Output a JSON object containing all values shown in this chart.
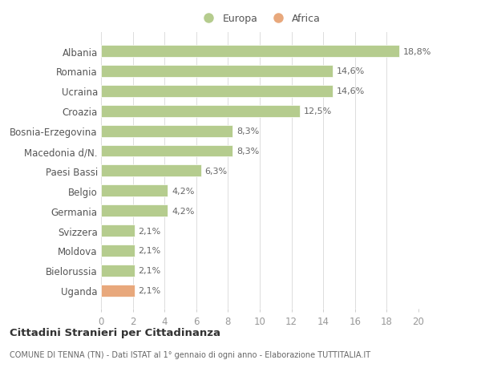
{
  "categories": [
    "Albania",
    "Romania",
    "Ucraina",
    "Croazia",
    "Bosnia-Erzegovina",
    "Macedonia d/N.",
    "Paesi Bassi",
    "Belgio",
    "Germania",
    "Svizzera",
    "Moldova",
    "Bielorussia",
    "Uganda"
  ],
  "values": [
    18.8,
    14.6,
    14.6,
    12.5,
    8.3,
    8.3,
    6.3,
    4.2,
    4.2,
    2.1,
    2.1,
    2.1,
    2.1
  ],
  "labels": [
    "18,8%",
    "14,6%",
    "14,6%",
    "12,5%",
    "8,3%",
    "8,3%",
    "6,3%",
    "4,2%",
    "4,2%",
    "2,1%",
    "2,1%",
    "2,1%",
    "2,1%"
  ],
  "colors": [
    "#b5cc8e",
    "#b5cc8e",
    "#b5cc8e",
    "#b5cc8e",
    "#b5cc8e",
    "#b5cc8e",
    "#b5cc8e",
    "#b5cc8e",
    "#b5cc8e",
    "#b5cc8e",
    "#b5cc8e",
    "#b5cc8e",
    "#e8a87c"
  ],
  "europa_color": "#b5cc8e",
  "africa_color": "#e8a87c",
  "xlim": [
    0,
    20
  ],
  "xticks": [
    0,
    2,
    4,
    6,
    8,
    10,
    12,
    14,
    16,
    18,
    20
  ],
  "title1": "Cittadini Stranieri per Cittadinanza",
  "title2": "COMUNE DI TENNA (TN) - Dati ISTAT al 1° gennaio di ogni anno - Elaborazione TUTTITALIA.IT",
  "background_color": "#ffffff",
  "legend_europa": "Europa",
  "legend_africa": "Africa"
}
